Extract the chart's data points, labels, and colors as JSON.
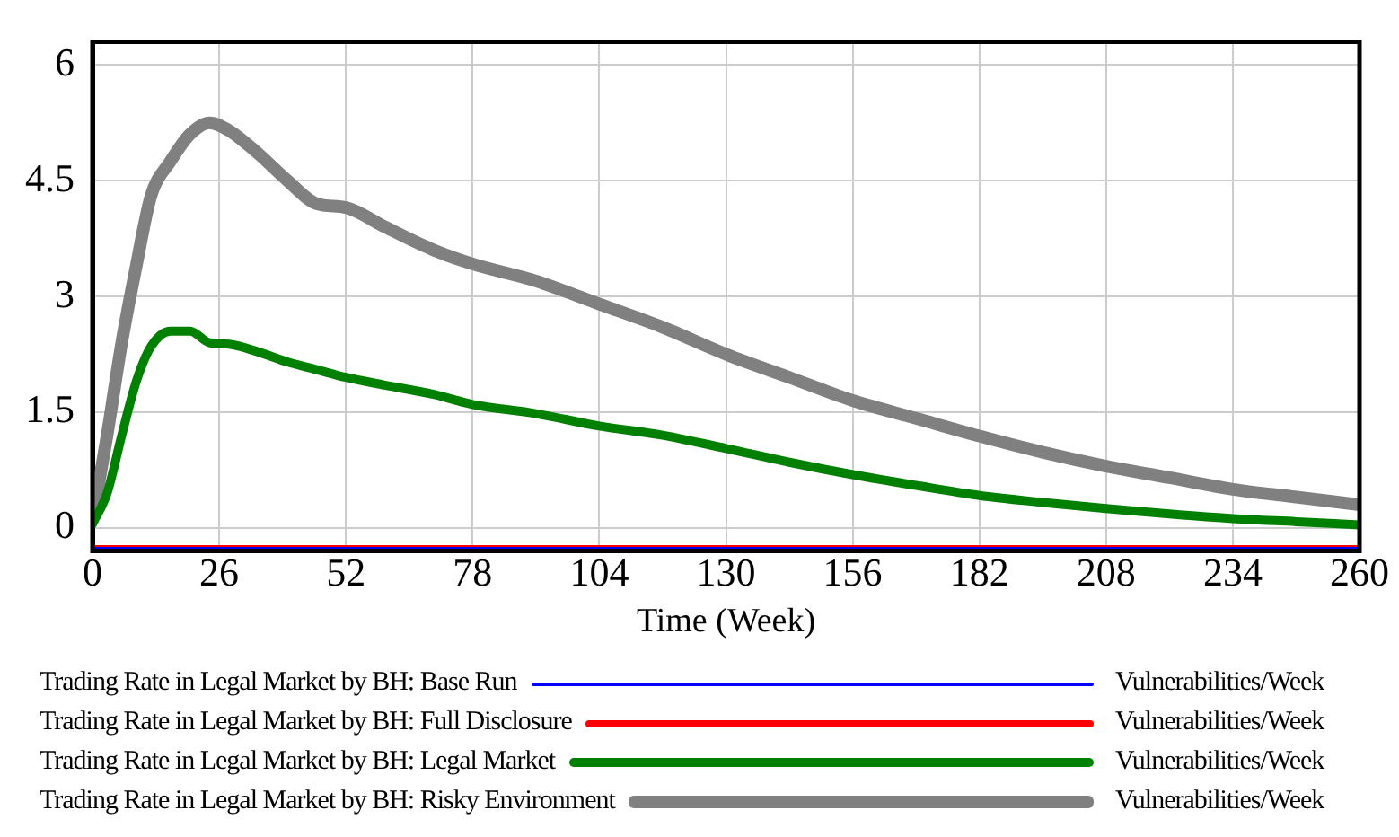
{
  "chart_data": {
    "type": "line",
    "xlabel": "Time (Week)",
    "annotations": [
      "Vulnerabilities/Week",
      "Vulnerabilities/Week",
      "Vulnerabilities/Week",
      "Vulnerabilities/Week"
    ],
    "xlim": [
      0,
      260
    ],
    "xticks": [
      0,
      26,
      52,
      78,
      104,
      130,
      156,
      182,
      208,
      234,
      260
    ],
    "ylim": [
      -0.3,
      6.3
    ],
    "yticks": [
      0,
      1.5,
      3,
      4.5,
      6
    ],
    "grid": true,
    "legend": "bottom",
    "x": [
      0,
      3,
      6,
      9,
      12,
      16,
      20,
      24,
      28,
      34,
      40,
      46,
      52,
      60,
      70,
      78,
      91,
      104,
      117,
      130,
      143,
      156,
      169,
      182,
      195,
      208,
      221,
      234,
      247,
      260
    ],
    "series": [
      {
        "name": "Trading Rate in Legal Market by BH: Base Run",
        "color": "#0000ff",
        "values": [
          -0.27,
          -0.27,
          -0.27,
          -0.27,
          -0.27,
          -0.27,
          -0.27,
          -0.27,
          -0.27,
          -0.27,
          -0.27,
          -0.27,
          -0.27,
          -0.27,
          -0.27,
          -0.27,
          -0.27,
          -0.27,
          -0.27,
          -0.27,
          -0.27,
          -0.27,
          -0.27,
          -0.27,
          -0.27,
          -0.27,
          -0.27,
          -0.27,
          -0.27,
          -0.27
        ]
      },
      {
        "name": "Trading Rate in Legal Market by BH: Full Disclosure",
        "color": "#ff0000",
        "values": [
          -0.27,
          -0.27,
          -0.27,
          -0.27,
          -0.27,
          -0.27,
          -0.27,
          -0.27,
          -0.27,
          -0.27,
          -0.27,
          -0.27,
          -0.27,
          -0.27,
          -0.27,
          -0.27,
          -0.27,
          -0.27,
          -0.27,
          -0.27,
          -0.27,
          -0.27,
          -0.27,
          -0.27,
          -0.27,
          -0.27,
          -0.27,
          -0.27,
          -0.27,
          -0.27
        ]
      },
      {
        "name": "Trading Rate in Legal Market by BH: Legal Market",
        "color": "#008000",
        "values": [
          0.05,
          0.45,
          1.2,
          1.9,
          2.35,
          2.55,
          2.55,
          2.4,
          2.38,
          2.28,
          2.15,
          2.05,
          1.95,
          1.85,
          1.73,
          1.6,
          1.48,
          1.32,
          1.2,
          1.03,
          0.85,
          0.69,
          0.55,
          0.42,
          0.33,
          0.25,
          0.18,
          0.12,
          0.08,
          0.04
        ]
      },
      {
        "name": "Trading Rate in Legal Market by BH: Risky Environment",
        "color": "#808080",
        "values": [
          0.1,
          1.2,
          2.4,
          3.4,
          4.3,
          4.75,
          5.1,
          5.25,
          5.15,
          4.85,
          4.5,
          4.2,
          4.15,
          3.9,
          3.6,
          3.42,
          3.2,
          2.9,
          2.6,
          2.25,
          1.95,
          1.65,
          1.42,
          1.19,
          0.98,
          0.8,
          0.65,
          0.5,
          0.4,
          0.3
        ]
      }
    ]
  }
}
